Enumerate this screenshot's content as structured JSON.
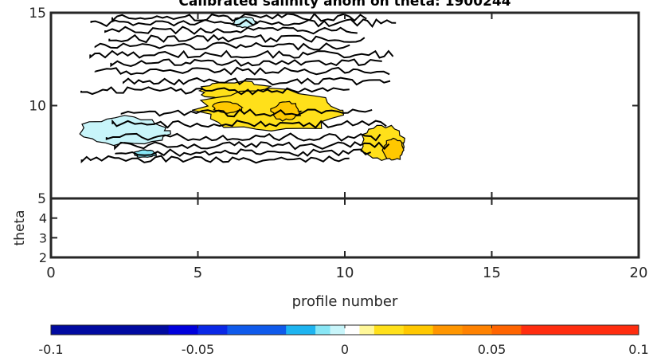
{
  "figure": {
    "title": "Calibrated salinity anom on theta: 1900244"
  },
  "colors": {
    "axis": "#262626",
    "contour_line": "#000000",
    "background": "#ffffff",
    "fill_anomaly_positive_low": "#fff799",
    "fill_anomaly_positive_mid": "#ffe01a",
    "fill_anomaly_positive_high": "#ffc800",
    "fill_anomaly_negative_low": "#c8f5fa",
    "fill_anomaly_negative_mid": "#88e6f5"
  },
  "chart_data": [
    {
      "type": "heatmap",
      "title": "Calibrated salinity anom on theta: 1900244",
      "xlabel": "",
      "ylabel": "",
      "xlim": [
        0,
        20
      ],
      "ylim": [
        5,
        15
      ],
      "x_ticks": [
        0,
        5,
        10,
        15,
        20
      ],
      "y_ticks": [
        5,
        10,
        15
      ],
      "y_tick_labels": [
        "5",
        "10",
        "15"
      ],
      "data_x_range": [
        1,
        12
      ],
      "data_y_range": [
        7,
        15
      ],
      "grid": false,
      "description_of_fields": "filled contour of salinity anomaly vs profile number and theta",
      "regions": [
        {
          "x": [
            5,
            7.5
          ],
          "y": [
            10.3,
            11.3
          ],
          "level": 0.01
        },
        {
          "x": [
            5,
            10
          ],
          "y": [
            8.6,
            10.9
          ],
          "level": 0.01
        },
        {
          "x": [
            5.5,
            6.5
          ],
          "y": [
            9.6,
            10.2
          ],
          "level": 0.02
        },
        {
          "x": [
            7.5,
            8.5
          ],
          "y": [
            9.2,
            10.2
          ],
          "level": 0.02
        },
        {
          "x": [
            10.5,
            12
          ],
          "y": [
            7,
            9
          ],
          "level": 0.01
        },
        {
          "x": [
            11.3,
            12
          ],
          "y": [
            7,
            8.2
          ],
          "level": 0.02
        },
        {
          "x": [
            1,
            4
          ],
          "y": [
            7.9,
            9.4
          ],
          "level": -0.005
        },
        {
          "x": [
            6.2,
            7
          ],
          "y": [
            14.2,
            14.8
          ],
          "level": -0.005
        },
        {
          "x": [
            2.8,
            3.6
          ],
          "y": [
            7.2,
            7.6
          ],
          "level": -0.01
        }
      ]
    },
    {
      "type": "heatmap",
      "title": "",
      "xlabel": "profile number",
      "ylabel": "theta",
      "xlim": [
        0,
        20
      ],
      "ylim": [
        2,
        5
      ],
      "x_ticks": [
        0,
        5,
        10,
        15,
        20
      ],
      "x_tick_labels": [
        "0",
        "5",
        "10",
        "15",
        "20"
      ],
      "y_ticks": [
        2,
        3,
        4
      ],
      "y_tick_labels": [
        "2",
        "3",
        "4"
      ],
      "grid": false
    },
    {
      "type": "colorbar",
      "range": [
        -0.1,
        0.1
      ],
      "tick_values": [
        -0.1,
        -0.05,
        0,
        0.05,
        0.1
      ],
      "tick_labels": [
        "-0.1",
        "-0.05",
        "0",
        "0.05",
        "0.1"
      ],
      "bins": [
        {
          "from": -0.1,
          "to": -0.06,
          "color": "#000aa0"
        },
        {
          "from": -0.06,
          "to": -0.05,
          "color": "#0000dc"
        },
        {
          "from": -0.05,
          "to": -0.04,
          "color": "#0a28e6"
        },
        {
          "from": -0.04,
          "to": -0.02,
          "color": "#0f5aeb"
        },
        {
          "from": -0.02,
          "to": -0.01,
          "color": "#1eb4f0"
        },
        {
          "from": -0.01,
          "to": -0.005,
          "color": "#88e6f5"
        },
        {
          "from": -0.005,
          "to": 0,
          "color": "#c8f5fa"
        },
        {
          "from": 0,
          "to": 0.005,
          "color": "#ffffff"
        },
        {
          "from": 0.005,
          "to": 0.01,
          "color": "#fff799"
        },
        {
          "from": 0.01,
          "to": 0.02,
          "color": "#ffe01a"
        },
        {
          "from": 0.02,
          "to": 0.03,
          "color": "#ffc800"
        },
        {
          "from": 0.03,
          "to": 0.04,
          "color": "#ff9600"
        },
        {
          "from": 0.04,
          "to": 0.05,
          "color": "#ff8200"
        },
        {
          "from": 0.05,
          "to": 0.06,
          "color": "#ff6400"
        },
        {
          "from": 0.06,
          "to": 0.1,
          "color": "#ff2d0f"
        }
      ]
    }
  ]
}
